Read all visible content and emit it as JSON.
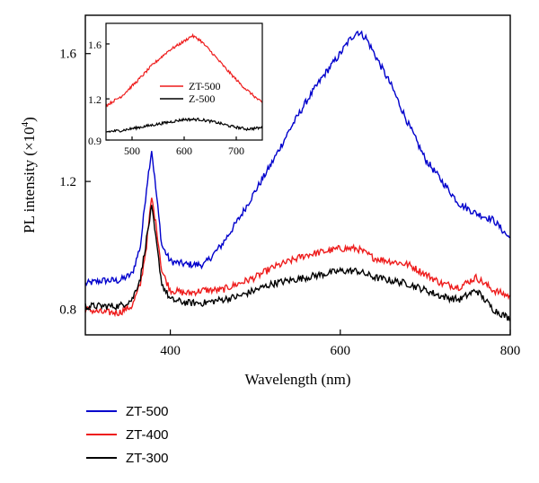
{
  "chart_data": [
    {
      "type": "line",
      "xlabel": "Wavelength (nm)",
      "ylabel_main": "PL intensity (×10",
      "ylabel_exp": "4",
      "ylabel_close": ")",
      "xlim": [
        300,
        800
      ],
      "ylim": [
        0.72,
        1.72
      ],
      "xticks": [
        400,
        600,
        800
      ],
      "yticks": [
        0.8,
        1.2,
        1.6
      ],
      "ytick_labels": [
        "0.8",
        "1.2",
        "1.6"
      ],
      "legend_position": "below plot, left",
      "series": [
        {
          "name": "ZT-500",
          "color": "#0000cc",
          "x": [
            300,
            320,
            340,
            355,
            365,
            372,
            378,
            384,
            390,
            400,
            420,
            440,
            460,
            480,
            500,
            520,
            540,
            560,
            580,
            600,
            610,
            620,
            630,
            640,
            660,
            680,
            700,
            720,
            740,
            760,
            780,
            800
          ],
          "y": [
            0.88,
            0.89,
            0.89,
            0.91,
            1.0,
            1.18,
            1.3,
            1.15,
            1.0,
            0.95,
            0.94,
            0.94,
            1.0,
            1.08,
            1.17,
            1.26,
            1.36,
            1.45,
            1.53,
            1.6,
            1.64,
            1.67,
            1.65,
            1.6,
            1.5,
            1.38,
            1.27,
            1.2,
            1.13,
            1.1,
            1.08,
            1.02
          ]
        },
        {
          "name": "ZT-400",
          "color": "#ee1c1c",
          "x": [
            300,
            320,
            340,
            355,
            365,
            372,
            378,
            384,
            390,
            400,
            420,
            440,
            460,
            480,
            500,
            520,
            540,
            560,
            580,
            600,
            620,
            640,
            660,
            680,
            700,
            720,
            740,
            760,
            780,
            800
          ],
          "y": [
            0.8,
            0.79,
            0.79,
            0.81,
            0.88,
            1.0,
            1.15,
            1.05,
            0.92,
            0.86,
            0.85,
            0.86,
            0.86,
            0.88,
            0.9,
            0.93,
            0.95,
            0.97,
            0.98,
            0.99,
            0.99,
            0.96,
            0.95,
            0.94,
            0.91,
            0.88,
            0.87,
            0.9,
            0.86,
            0.84
          ]
        },
        {
          "name": "ZT-300",
          "color": "#000000",
          "x": [
            300,
            320,
            340,
            355,
            365,
            372,
            378,
            384,
            390,
            400,
            420,
            440,
            460,
            480,
            500,
            520,
            540,
            560,
            580,
            600,
            620,
            640,
            660,
            680,
            700,
            720,
            740,
            760,
            780,
            800
          ],
          "y": [
            0.81,
            0.81,
            0.81,
            0.83,
            0.9,
            1.02,
            1.12,
            1.0,
            0.88,
            0.83,
            0.82,
            0.82,
            0.83,
            0.84,
            0.86,
            0.88,
            0.89,
            0.9,
            0.91,
            0.92,
            0.92,
            0.9,
            0.89,
            0.88,
            0.86,
            0.84,
            0.83,
            0.86,
            0.8,
            0.77
          ]
        }
      ]
    },
    {
      "type": "line",
      "xlim": [
        450,
        750
      ],
      "ylim": [
        0.9,
        1.75
      ],
      "xticks": [
        500,
        600,
        700
      ],
      "yticks": [
        0.9,
        1.2,
        1.6
      ],
      "ytick_labels": [
        "0.9",
        "1.2",
        "1.6"
      ],
      "legend_position": "center-right",
      "series": [
        {
          "name": "ZT-500",
          "color": "#ee1c1c",
          "x": [
            450,
            480,
            510,
            540,
            570,
            600,
            615,
            630,
            650,
            680,
            710,
            740,
            750
          ],
          "y": [
            1.15,
            1.22,
            1.33,
            1.45,
            1.55,
            1.62,
            1.66,
            1.63,
            1.55,
            1.42,
            1.3,
            1.2,
            1.17
          ]
        },
        {
          "name": "Z-500",
          "color": "#000000",
          "x": [
            450,
            480,
            510,
            540,
            570,
            600,
            630,
            660,
            690,
            720,
            750
          ],
          "y": [
            0.96,
            0.97,
            0.99,
            1.01,
            1.03,
            1.05,
            1.05,
            1.03,
            1.0,
            0.98,
            0.99
          ]
        }
      ]
    }
  ]
}
